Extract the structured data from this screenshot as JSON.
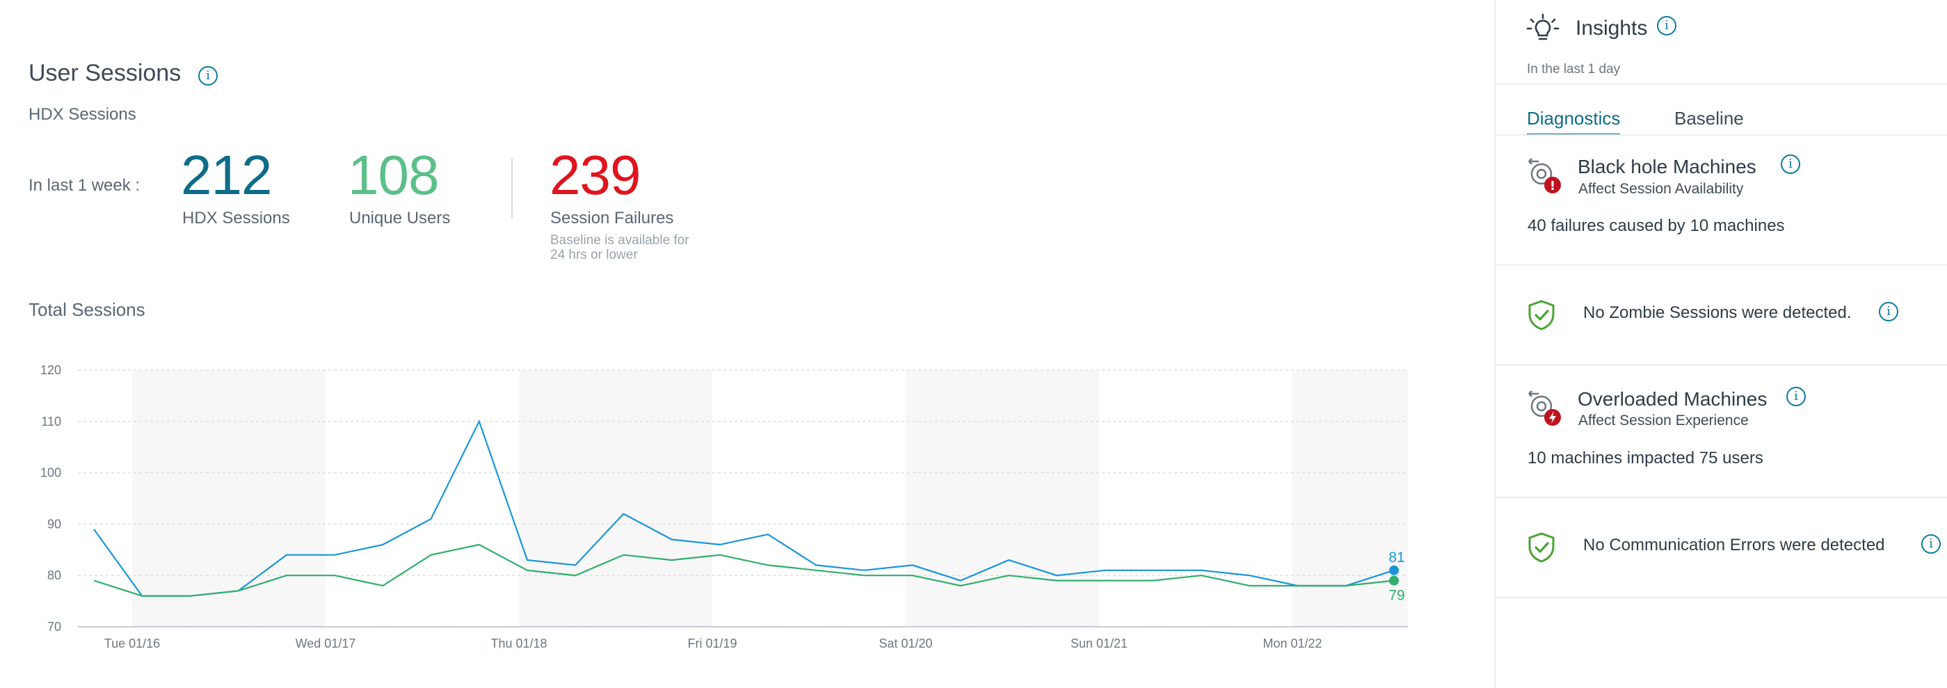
{
  "main": {
    "title": "User Sessions",
    "subtitle": "HDX Sessions",
    "period_label": "In last 1 week :",
    "kpis": [
      {
        "value": "212",
        "label": "HDX Sessions",
        "color": "#0e6c8a"
      },
      {
        "value": "108",
        "label": "Unique Users",
        "color": "#5bbf8a"
      },
      {
        "value": "239",
        "label": "Session Failures",
        "color": "#e0141e",
        "note": "Baseline is available for 24 hrs or lower"
      }
    ],
    "section_title": "Total Sessions"
  },
  "chart_data": {
    "type": "line",
    "title": "Total Sessions",
    "ylim": [
      70,
      120
    ],
    "yticks": [
      70,
      80,
      90,
      100,
      110,
      120
    ],
    "grid": true,
    "x_tick_labels": [
      "Tue 01/16",
      "Wed 01/17",
      "Thu 01/18",
      "Fri 01/19",
      "Sat 01/20",
      "Sun 01/21",
      "Mon 01/22"
    ],
    "points_per_day": 6,
    "series": [
      {
        "color": "#1a96d8",
        "end_label": "81",
        "values": [
          89,
          76,
          76,
          77,
          84,
          84,
          86,
          91,
          110,
          83,
          82,
          92,
          87,
          86,
          88,
          82,
          81,
          82,
          79,
          83,
          80,
          81,
          81,
          81,
          80,
          78,
          78,
          81
        ]
      },
      {
        "color": "#2fae6a",
        "end_label": "79",
        "values": [
          79,
          76,
          76,
          77,
          80,
          80,
          78,
          84,
          86,
          81,
          80,
          84,
          83,
          84,
          82,
          81,
          80,
          80,
          78,
          80,
          79,
          79,
          79,
          80,
          78,
          78,
          78,
          79
        ]
      }
    ]
  },
  "panel": {
    "title": "Insights",
    "subtitle": "In the last 1 day",
    "tabs": [
      "Diagnostics",
      "Baseline"
    ],
    "active_tab": "Diagnostics",
    "cards": [
      {
        "title": "Black hole Machines",
        "subtitle": "Affect Session Availability",
        "body": "40 failures caused by 10 machines",
        "icon": "machine-error-icon",
        "badge_color": "#c1121f"
      },
      {
        "message": "No Zombie Sessions were detected.",
        "icon": "shield-check-icon",
        "color": "#4aa336"
      },
      {
        "title": "Overloaded Machines",
        "subtitle": "Affect Session Experience",
        "body": "10 machines impacted 75 users",
        "icon": "machine-overload-icon",
        "badge_color": "#c1121f"
      },
      {
        "message": "No Communication Errors were detected",
        "icon": "shield-check-icon",
        "color": "#4aa336"
      }
    ]
  }
}
